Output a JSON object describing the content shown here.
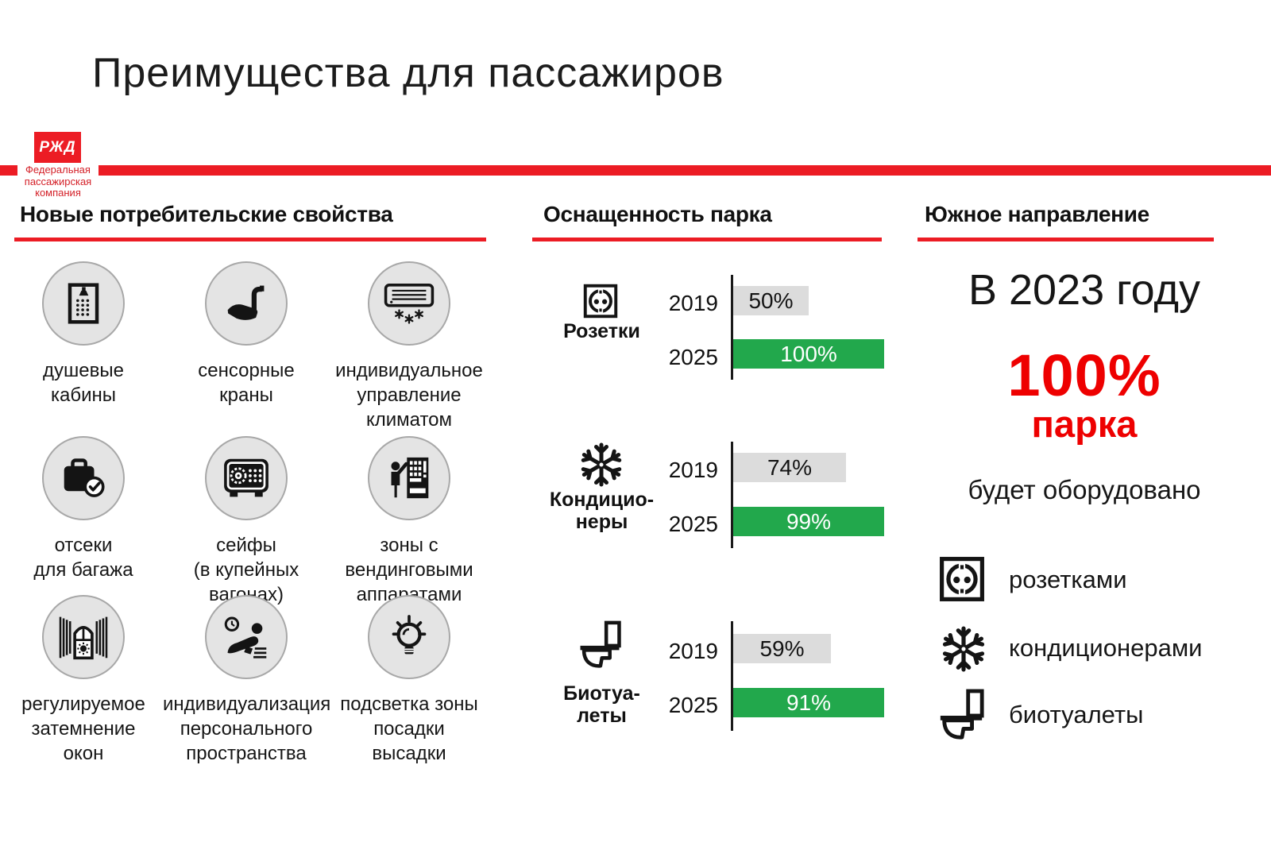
{
  "slide": {
    "title": "Преимущества для пассажиров",
    "logo": {
      "mark": "РЖД",
      "company_lines": "Федеральная\nпассажирская\nкомпания"
    },
    "colors": {
      "accent_red": "#EC1C24",
      "highlight_red": "#EE0000",
      "bar_green": "#22A84C",
      "bar_gray": "#DCDCDC",
      "circle_fill": "#E4E4E4",
      "circle_border": "#A8A8A8"
    }
  },
  "features": {
    "header": "Новые потребительские свойства",
    "items": [
      {
        "icon": "shower-icon",
        "label": "душевые\nкабины"
      },
      {
        "icon": "touch-faucet-icon",
        "label": "сенсорные\nкраны"
      },
      {
        "icon": "climate-control-icon",
        "label": "индивидуальное\nуправление\nклиматом"
      },
      {
        "icon": "luggage-icon",
        "label": "отсеки\nдля багажа"
      },
      {
        "icon": "safe-icon",
        "label": "сейфы\n(в купейных\nвагонах)"
      },
      {
        "icon": "vending-machine-icon",
        "label": "зоны с\nвендинговыми\nаппаратами"
      },
      {
        "icon": "window-dimming-icon",
        "label": "регулируемое\nзатемнение\nокон"
      },
      {
        "icon": "personal-space-icon",
        "label": "индивидуализация\nперсонального\nпространства"
      },
      {
        "icon": "boarding-light-icon",
        "label": "подсветка зоны\nпосадки\nвысадки"
      }
    ]
  },
  "fleet": {
    "header": "Оснащенность парка",
    "groups": [
      {
        "icon": "power-socket-icon",
        "label": "Розетки",
        "bars": [
          {
            "year": "2019",
            "value": 50,
            "display": "50%"
          },
          {
            "year": "2025",
            "value": 100,
            "display": "100%"
          }
        ]
      },
      {
        "icon": "snowflake-icon",
        "label": "Кондицио-\nнеры",
        "bars": [
          {
            "year": "2019",
            "value": 74,
            "display": "74%"
          },
          {
            "year": "2025",
            "value": 99,
            "display": "99%"
          }
        ]
      },
      {
        "icon": "toilet-icon",
        "label": "Биотуа-\nлеты",
        "bars": [
          {
            "year": "2019",
            "value": 59,
            "display": "59%"
          },
          {
            "year": "2025",
            "value": 91,
            "display": "91%"
          }
        ]
      }
    ]
  },
  "south": {
    "header": "Южное направление",
    "intro": "В 2023 году",
    "highlight_value": "100%",
    "highlight_unit": "парка",
    "outro": "будет оборудовано",
    "equipment": [
      {
        "icon": "power-socket-icon",
        "label": "розетками"
      },
      {
        "icon": "snowflake-icon",
        "label": "кондиционерами"
      },
      {
        "icon": "toilet-icon",
        "label": "биотуалеты"
      }
    ]
  },
  "chart_data": {
    "type": "bar",
    "orientation": "horizontal",
    "title": "Оснащенность парка",
    "categories": [
      "Розетки",
      "Кондиционеры",
      "Биотуалеты"
    ],
    "series": [
      {
        "name": "2019",
        "values": [
          50,
          74,
          59
        ],
        "color": "#DCDCDC"
      },
      {
        "name": "2025",
        "values": [
          100,
          99,
          91
        ],
        "color": "#22A84C"
      }
    ],
    "unit": "%",
    "xlim": [
      0,
      100
    ],
    "value_labels": [
      [
        "50%",
        "74%",
        "59%"
      ],
      [
        "100%",
        "99%",
        "91%"
      ]
    ],
    "legend_position": "none",
    "grid": false
  }
}
